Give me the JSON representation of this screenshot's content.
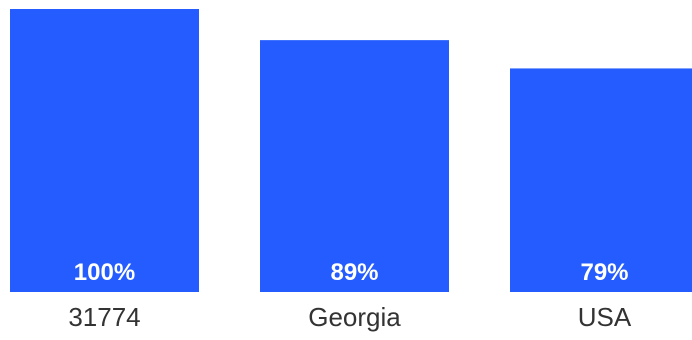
{
  "chart_data": {
    "type": "bar",
    "categories": [
      "31774",
      "Georgia",
      "USA"
    ],
    "values": [
      100,
      89,
      79
    ],
    "value_labels": [
      "100%",
      "89%",
      "79%"
    ],
    "unit": "%",
    "ylim": [
      0,
      100
    ],
    "bar_color": "#255cff",
    "value_label_color": "#ffffff",
    "category_label_color": "#333333",
    "grid": false,
    "legend": "none",
    "title": "",
    "xlabel": "",
    "ylabel": ""
  }
}
